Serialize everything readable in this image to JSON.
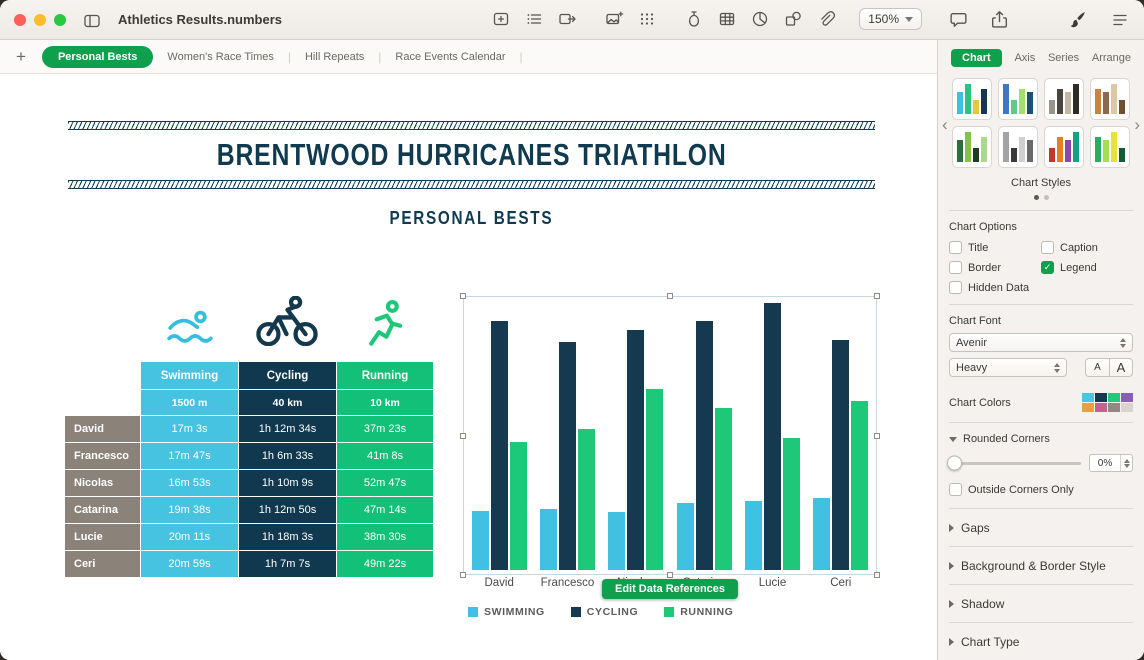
{
  "colors": {
    "accent_green": "#0fa04e",
    "title_navy": "#0f3a4f"
  },
  "titlebar": {
    "title": "Athletics Results.numbers",
    "zoom": "150%"
  },
  "tabs": [
    {
      "label": "Personal Bests",
      "active": true
    },
    {
      "label": "Women's Race Times",
      "active": false
    },
    {
      "label": "Hill Repeats",
      "active": false
    },
    {
      "label": "Race Events Calendar",
      "active": false
    }
  ],
  "sheet": {
    "title": "BRENTWOOD HURRICANES TRIATHLON",
    "subtitle": "PERSONAL BESTS"
  },
  "table": {
    "columns": [
      {
        "label": "Swimming",
        "sub": "1500 m",
        "color": "#47c3e2"
      },
      {
        "label": "Cycling",
        "sub": "40 km",
        "color": "#10394f"
      },
      {
        "label": "Running",
        "sub": "10 km",
        "color": "#13c077"
      }
    ],
    "rows": [
      {
        "name": "David",
        "values": [
          "17m 3s",
          "1h 12m 34s",
          "37m 23s"
        ]
      },
      {
        "name": "Francesco",
        "values": [
          "17m 47s",
          "1h 6m 33s",
          "41m 8s"
        ]
      },
      {
        "name": "Nicolas",
        "values": [
          "16m 53s",
          "1h 10m 9s",
          "52m 47s"
        ]
      },
      {
        "name": "Catarina",
        "values": [
          "19m 38s",
          "1h 12m 50s",
          "47m 14s"
        ]
      },
      {
        "name": "Lucie",
        "values": [
          "20m 11s",
          "1h 18m 3s",
          "38m 30s"
        ]
      },
      {
        "name": "Ceri",
        "values": [
          "20m 59s",
          "1h 7m 7s",
          "49m 22s"
        ]
      }
    ]
  },
  "chart_data": {
    "type": "bar",
    "categories": [
      "David",
      "Francesco",
      "Nicolas",
      "Catarina",
      "Lucie",
      "Ceri"
    ],
    "series": [
      {
        "name": "SWIMMING",
        "color": "#41c1e2",
        "values": [
          17.1,
          17.8,
          16.9,
          19.6,
          20.2,
          21.0
        ]
      },
      {
        "name": "CYCLING",
        "color": "#153a4f",
        "values": [
          72.6,
          66.6,
          70.2,
          72.8,
          78.1,
          67.1
        ]
      },
      {
        "name": "RUNNING",
        "color": "#1fc878",
        "values": [
          37.4,
          41.1,
          52.8,
          47.2,
          38.5,
          49.4
        ]
      }
    ],
    "units": "minutes",
    "ylim": [
      0,
      80
    ],
    "grid": false,
    "legend_position": "bottom"
  },
  "edit_button_label": "Edit Data References",
  "inspector": {
    "tabs": [
      {
        "label": "Chart",
        "active": true
      },
      {
        "label": "Axis",
        "active": false
      },
      {
        "label": "Series",
        "active": false
      },
      {
        "label": "Arrange",
        "active": false
      }
    ],
    "style_palettes": [
      [
        "#3fc0e0",
        "#2bc47e",
        "#e3c93e",
        "#16384e"
      ],
      [
        "#3a79c2",
        "#61c98b",
        "#a5df6b",
        "#1d4f72"
      ],
      [
        "#9a948c",
        "#4a463f",
        "#c4b7a4",
        "#2f2c28"
      ],
      [
        "#c78440",
        "#8a6a4f",
        "#dcc9a4",
        "#6e4f2f"
      ],
      [
        "#2f6e3a",
        "#84c24a",
        "#1e3d24",
        "#abd88a"
      ],
      [
        "#a3a3a3",
        "#3a3a3a",
        "#cfcfcf",
        "#6a6a6a"
      ],
      [
        "#c0392b",
        "#e67e22",
        "#8e44ad",
        "#16a085"
      ],
      [
        "#27ae60",
        "#a3e048",
        "#e8e337",
        "#145a32"
      ]
    ],
    "chart_styles_label": "Chart Styles",
    "chart_options_label": "Chart Options",
    "checkboxes": [
      {
        "label": "Title",
        "checked": false
      },
      {
        "label": "Caption",
        "checked": false
      },
      {
        "label": "Border",
        "checked": false
      },
      {
        "label": "Legend",
        "checked": true
      },
      {
        "label": "Hidden Data",
        "checked": false
      }
    ],
    "chart_font_label": "Chart Font",
    "font_family": "Avenir",
    "font_weight": "Heavy",
    "font_smaller": "A",
    "font_larger": "A",
    "chart_colors_label": "Chart Colors",
    "color_swatches": [
      "#49c4e3",
      "#15384d",
      "#23c87d",
      "#8a5fb0",
      "#e8a13c",
      "#c95f8e",
      "#8f8a84",
      "#d9d4cf"
    ],
    "rounded_corners_label": "Rounded Corners",
    "rounded_corners_value": "0%",
    "outside_corners_label": "Outside Corners Only",
    "sections": [
      "Gaps",
      "Background & Border Style",
      "Shadow",
      "Chart Type"
    ]
  }
}
